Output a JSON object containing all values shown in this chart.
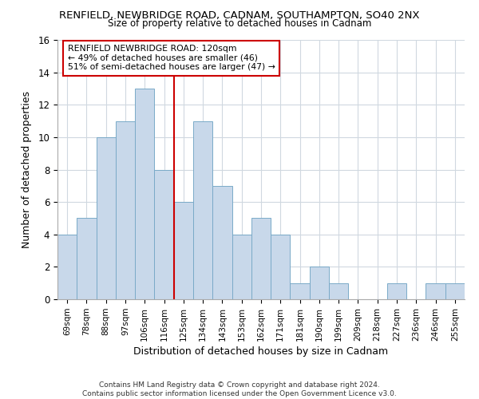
{
  "title": "RENFIELD, NEWBRIDGE ROAD, CADNAM, SOUTHAMPTON, SO40 2NX",
  "subtitle": "Size of property relative to detached houses in Cadnam",
  "xlabel": "Distribution of detached houses by size in Cadnam",
  "ylabel": "Number of detached properties",
  "bar_color": "#c8d8ea",
  "bar_edge_color": "#7aaac8",
  "categories": [
    "69sqm",
    "78sqm",
    "88sqm",
    "97sqm",
    "106sqm",
    "116sqm",
    "125sqm",
    "134sqm",
    "143sqm",
    "153sqm",
    "162sqm",
    "171sqm",
    "181sqm",
    "190sqm",
    "199sqm",
    "209sqm",
    "218sqm",
    "227sqm",
    "236sqm",
    "246sqm",
    "255sqm"
  ],
  "values": [
    4,
    5,
    10,
    11,
    13,
    8,
    6,
    11,
    7,
    4,
    5,
    4,
    1,
    2,
    1,
    0,
    0,
    1,
    0,
    1,
    1
  ],
  "ylim": [
    0,
    16
  ],
  "yticks": [
    0,
    2,
    4,
    6,
    8,
    10,
    12,
    14,
    16
  ],
  "vline_x": 5.5,
  "vline_color": "#cc0000",
  "annotation_line1": "RENFIELD NEWBRIDGE ROAD: 120sqm",
  "annotation_line2": "← 49% of detached houses are smaller (46)",
  "annotation_line3": "51% of semi-detached houses are larger (47) →",
  "footer1": "Contains HM Land Registry data © Crown copyright and database right 2024.",
  "footer2": "Contains public sector information licensed under the Open Government Licence v3.0.",
  "background_color": "#ffffff",
  "grid_color": "#d0d8e0"
}
